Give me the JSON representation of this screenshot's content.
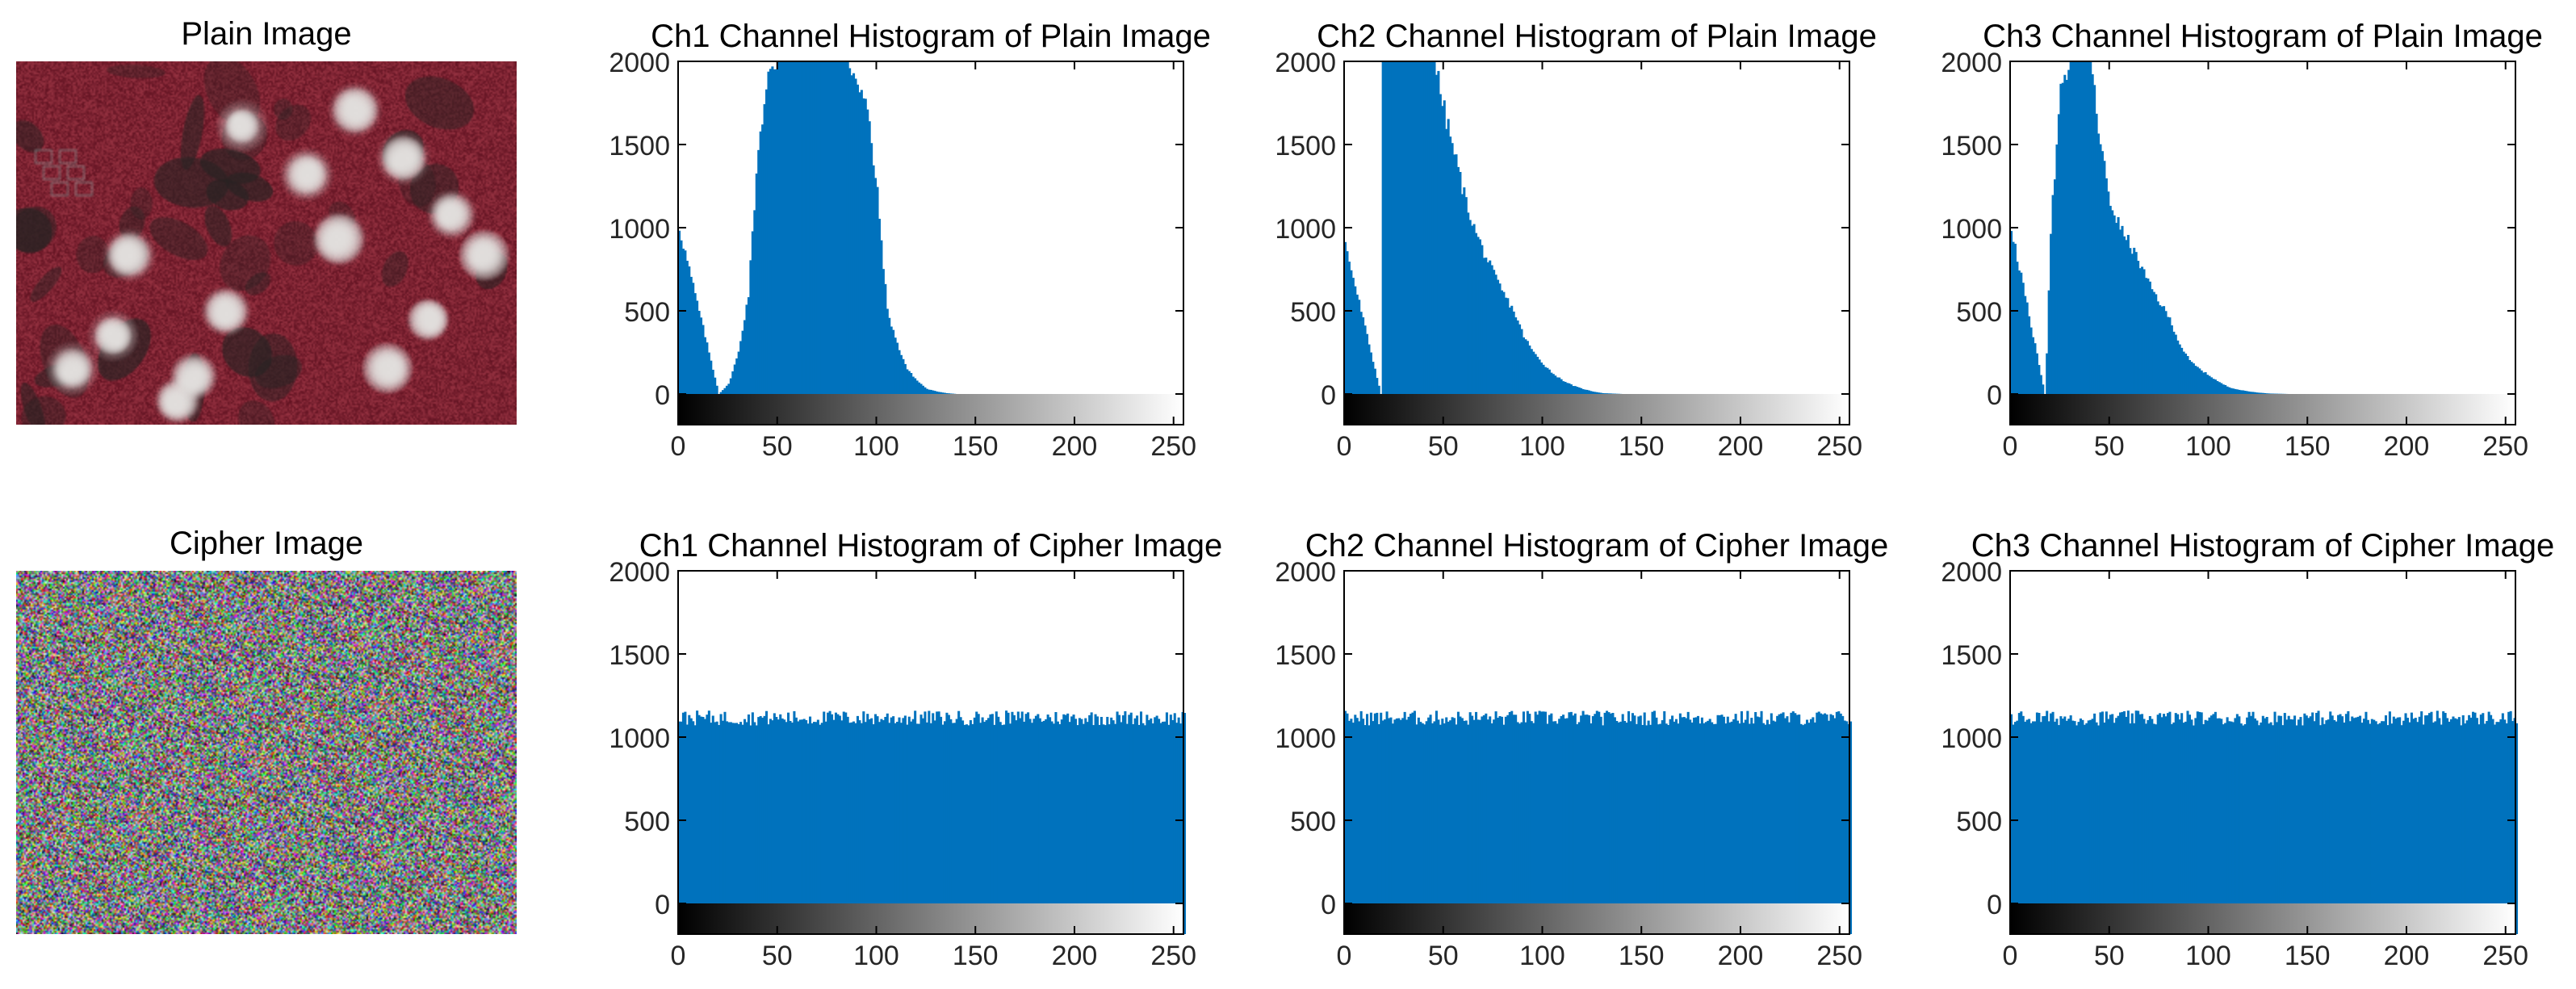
{
  "figure": {
    "plain_image_title": "Plain Image",
    "cipher_image_title": "Cipher Image"
  },
  "colors": {
    "bar": "#0072BD",
    "axis": "#000000",
    "plain_image_base": "#7a1a28",
    "plain_image_clouds": "#d8d6d4"
  },
  "icons": {
    "plain_image": "satellite-image-false-color",
    "cipher_image": "random-noise-image"
  },
  "chart_data": [
    {
      "type": "bar",
      "title": "Ch1 Channel Histogram of Plain Image",
      "xlim": [
        0,
        255
      ],
      "ylim": [
        0,
        2000
      ],
      "xticks": [
        0,
        50,
        100,
        150,
        200,
        250
      ],
      "yticks": [
        0,
        500,
        1000,
        1500,
        2000
      ],
      "colorbar": "grayscale",
      "profile": "plain",
      "x": [
        0,
        20,
        25,
        30,
        35,
        40,
        45,
        50,
        55,
        60,
        65,
        70,
        75,
        80,
        85,
        90,
        95,
        100,
        105,
        110,
        115,
        120,
        125,
        130,
        135,
        140,
        150,
        255
      ],
      "values": [
        1000,
        0,
        60,
        250,
        600,
        1500,
        1900,
        2000,
        2000,
        2000,
        2000,
        2000,
        2000,
        2000,
        2000,
        1900,
        1700,
        1200,
        500,
        300,
        150,
        80,
        30,
        15,
        5,
        0,
        0,
        0
      ]
    },
    {
      "type": "bar",
      "title": "Ch2 Channel Histogram of Plain Image",
      "xlim": [
        0,
        255
      ],
      "ylim": [
        0,
        2000
      ],
      "xticks": [
        0,
        50,
        100,
        150,
        200,
        250
      ],
      "yticks": [
        0,
        500,
        1000,
        1500,
        2000
      ],
      "colorbar": "grayscale",
      "profile": "plain",
      "x": [
        0,
        18,
        19,
        25,
        30,
        35,
        40,
        45,
        50,
        55,
        60,
        65,
        70,
        75,
        80,
        85,
        90,
        95,
        100,
        105,
        110,
        115,
        120,
        125,
        130,
        140,
        150,
        255
      ],
      "values": [
        900,
        0,
        2000,
        2000,
        2000,
        2000,
        2000,
        2000,
        1700,
        1450,
        1200,
        1000,
        850,
        720,
        600,
        500,
        350,
        250,
        180,
        120,
        80,
        50,
        30,
        15,
        5,
        0,
        0,
        0
      ]
    },
    {
      "type": "bar",
      "title": "Ch3 Channel Histogram of Plain Image",
      "xlim": [
        0,
        255
      ],
      "ylim": [
        0,
        2000
      ],
      "xticks": [
        0,
        50,
        100,
        150,
        200,
        250
      ],
      "yticks": [
        0,
        500,
        1000,
        1500,
        2000
      ],
      "colorbar": "grayscale",
      "profile": "plain",
      "x": [
        0,
        17,
        18,
        20,
        25,
        30,
        35,
        40,
        45,
        50,
        55,
        60,
        65,
        70,
        75,
        80,
        85,
        90,
        95,
        100,
        105,
        110,
        115,
        120,
        125,
        130,
        140,
        255
      ],
      "values": [
        1000,
        0,
        250,
        1000,
        1800,
        2000,
        2000,
        2000,
        1500,
        1150,
        1000,
        900,
        780,
        650,
        550,
        450,
        300,
        200,
        150,
        110,
        70,
        40,
        25,
        15,
        8,
        3,
        0,
        0
      ]
    },
    {
      "type": "bar",
      "title": "Ch1 Channel Histogram of Cipher Image",
      "xlim": [
        0,
        255
      ],
      "ylim": [
        0,
        2000
      ],
      "xticks": [
        0,
        50,
        100,
        150,
        200,
        250
      ],
      "yticks": [
        0,
        500,
        1000,
        1500,
        2000
      ],
      "colorbar": "grayscale",
      "profile": "uniform",
      "x": [
        0,
        255
      ],
      "values": [
        1110,
        1110
      ]
    },
    {
      "type": "bar",
      "title": "Ch2 Channel Histogram of Cipher Image",
      "xlim": [
        0,
        255
      ],
      "ylim": [
        0,
        2000
      ],
      "xticks": [
        0,
        50,
        100,
        150,
        200,
        250
      ],
      "yticks": [
        0,
        500,
        1000,
        1500,
        2000
      ],
      "colorbar": "grayscale",
      "profile": "uniform",
      "x": [
        0,
        255
      ],
      "values": [
        1110,
        1110
      ]
    },
    {
      "type": "bar",
      "title": "Ch3 Channel Histogram of Cipher Image",
      "xlim": [
        0,
        255
      ],
      "ylim": [
        0,
        2000
      ],
      "xticks": [
        0,
        50,
        100,
        150,
        200,
        250
      ],
      "yticks": [
        0,
        500,
        1000,
        1500,
        2000
      ],
      "colorbar": "grayscale",
      "profile": "uniform",
      "x": [
        0,
        255
      ],
      "values": [
        1110,
        1110
      ]
    }
  ]
}
